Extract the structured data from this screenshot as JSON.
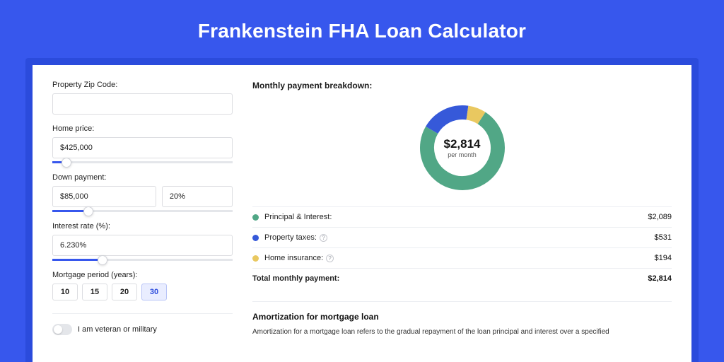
{
  "page": {
    "title": "Frankenstein FHA Loan Calculator",
    "bg_color": "#3757ed",
    "outer_card_color": "#2b4bdc"
  },
  "form": {
    "zip": {
      "label": "Property Zip Code:",
      "value": ""
    },
    "home_price": {
      "label": "Home price:",
      "value": "$425,000",
      "slider_pct": 8
    },
    "down_payment": {
      "label": "Down payment:",
      "amount": "$85,000",
      "percent": "20%",
      "slider_pct": 20
    },
    "interest": {
      "label": "Interest rate (%):",
      "value": "6.230%",
      "slider_pct": 28
    },
    "period": {
      "label": "Mortgage period (years):",
      "options": [
        "10",
        "15",
        "20",
        "30"
      ],
      "selected_index": 3
    },
    "veteran": {
      "label": "I am veteran or military",
      "on": false
    }
  },
  "breakdown": {
    "title": "Monthly payment breakdown:",
    "donut": {
      "amount": "$2,814",
      "sub": "per month",
      "slices": [
        {
          "label": "Principal & Interest:",
          "value": "$2,089",
          "color": "#51a786",
          "frac": 0.742,
          "has_info": false
        },
        {
          "label": "Property taxes:",
          "value": "$531",
          "color": "#3659d9",
          "frac": 0.189,
          "has_info": true
        },
        {
          "label": "Home insurance:",
          "value": "$194",
          "color": "#e9c860",
          "frac": 0.069,
          "has_info": true
        }
      ],
      "stroke_width": 20,
      "bg": "#ffffff"
    },
    "total": {
      "label": "Total monthly payment:",
      "value": "$2,814"
    }
  },
  "amort": {
    "title": "Amortization for mortgage loan",
    "body": "Amortization for a mortgage loan refers to the gradual repayment of the loan principal and interest over a specified"
  }
}
